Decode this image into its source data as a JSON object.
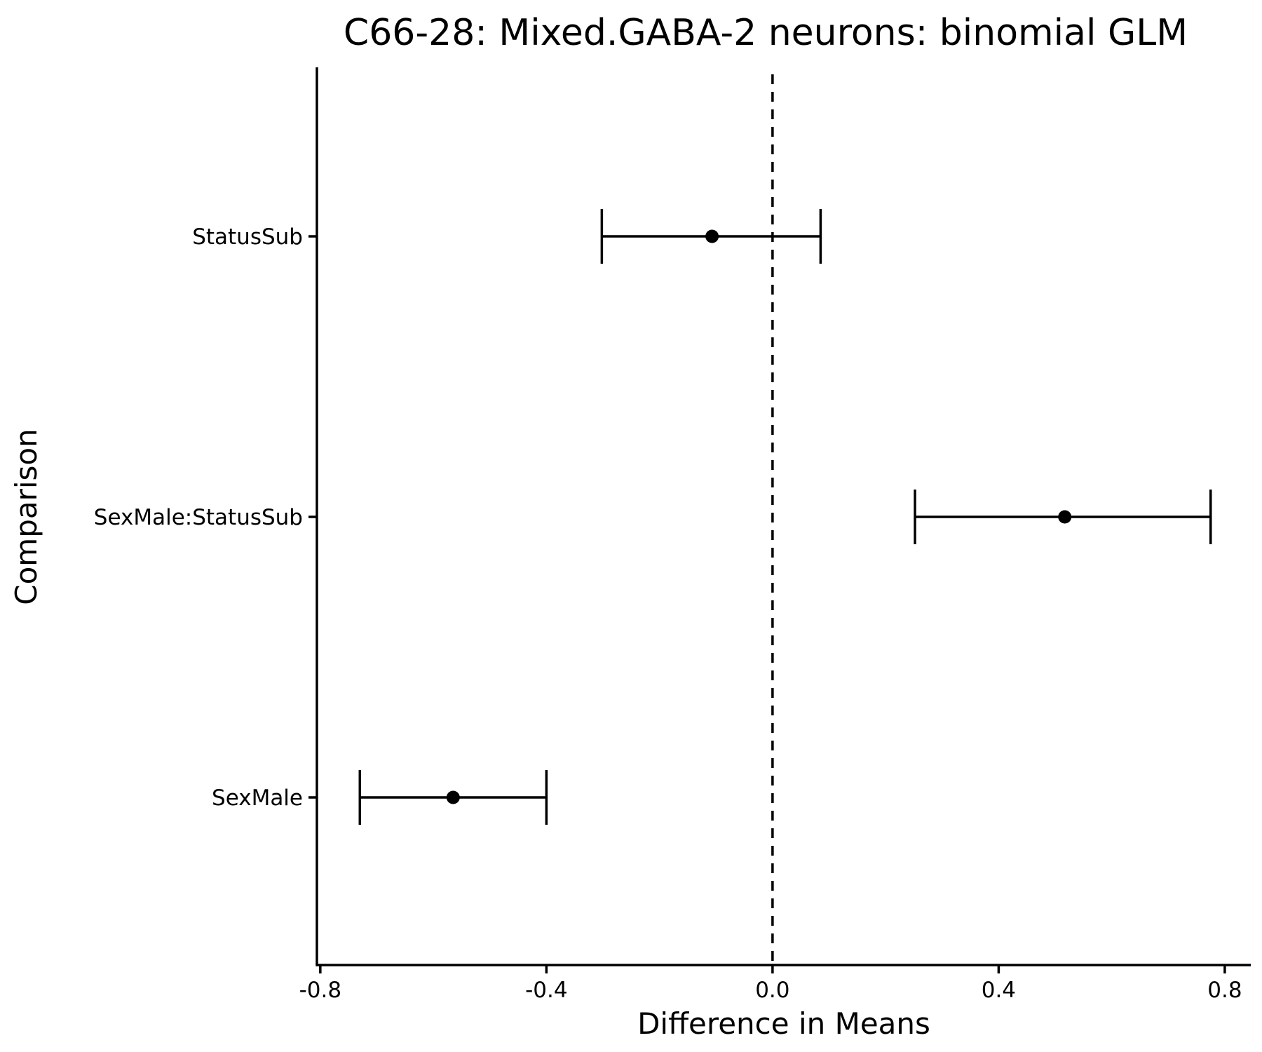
{
  "chart_data": {
    "type": "scatter",
    "title": "C66-28: Mixed.GABA-2 neurons: binomial GLM",
    "xlabel": "Difference in Means",
    "ylabel": "Comparison",
    "xlim": [
      -0.806,
      0.846
    ],
    "x_ticks": [
      "-0.8",
      "-0.4",
      "0.0",
      "0.4",
      "0.8"
    ],
    "x_tick_values": [
      -0.8,
      -0.4,
      0.0,
      0.4,
      0.8
    ],
    "categories": [
      "StatusSub",
      "SexMale:StatusSub",
      "SexMale"
    ],
    "points": [
      {
        "category": "StatusSub",
        "estimate": -0.107,
        "lower": -0.302,
        "upper": 0.085
      },
      {
        "category": "SexMale:StatusSub",
        "estimate": 0.517,
        "lower": 0.252,
        "upper": 0.775
      },
      {
        "category": "SexMale",
        "estimate": -0.565,
        "lower": -0.73,
        "upper": -0.4
      }
    ],
    "reference_line": 0.0,
    "grid": false,
    "legend": "none",
    "colors": {
      "marks": "#000000",
      "background": "#ffffff"
    }
  }
}
